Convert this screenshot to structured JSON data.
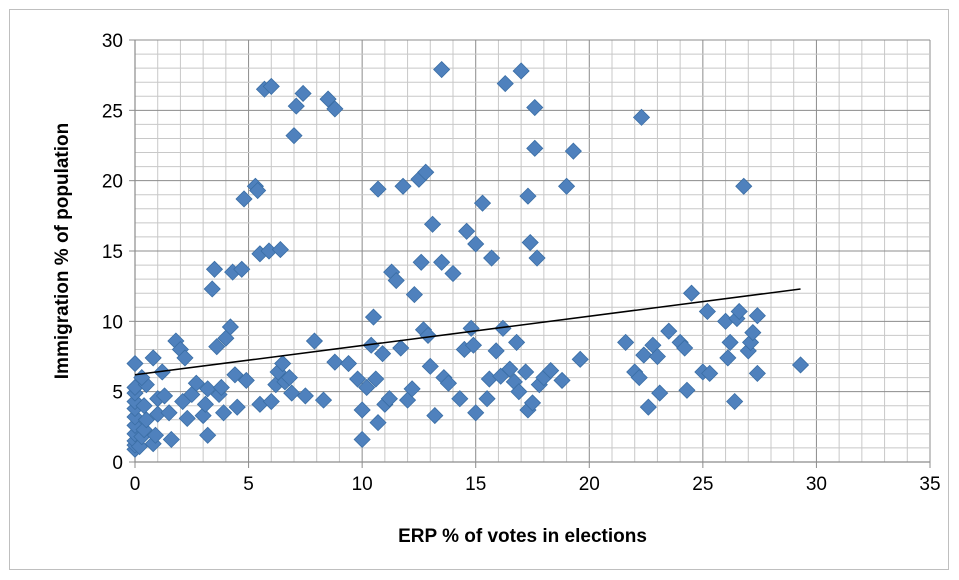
{
  "chart_data": {
    "type": "scatter",
    "xlabel": "ERP % of votes in elections",
    "ylabel": "Immigration % of population",
    "xlim": [
      0,
      35
    ],
    "ylim": [
      0,
      30
    ],
    "x_ticks": [
      "0",
      "5",
      "10",
      "15",
      "20",
      "25",
      "30",
      "35"
    ],
    "y_ticks": [
      "0",
      "5",
      "10",
      "15",
      "20",
      "25",
      "30"
    ],
    "grid": "major and minor",
    "legend": "none",
    "marker": "diamond",
    "marker_color": "#4f81bd",
    "trendline": {
      "type": "linear",
      "x_start": 0,
      "y_start": 6.2,
      "x_end": 29.3,
      "y_end": 12.3,
      "color": "#000000"
    },
    "series": [
      {
        "points": [
          [
            0,
            0.9
          ],
          [
            0,
            1.2
          ],
          [
            0,
            1.5
          ],
          [
            0,
            2.0
          ],
          [
            0,
            2.6
          ],
          [
            0,
            3.2
          ],
          [
            0,
            3.8
          ],
          [
            0,
            4.3
          ],
          [
            0,
            4.9
          ],
          [
            0,
            5.3
          ],
          [
            0,
            7.0
          ],
          [
            0.2,
            1.1
          ],
          [
            0.3,
            1.8
          ],
          [
            0.4,
            2.3
          ],
          [
            0.5,
            3.0
          ],
          [
            0.4,
            4.0
          ],
          [
            0.5,
            5.5
          ],
          [
            0.3,
            6.0
          ],
          [
            0.8,
            1.3
          ],
          [
            0.9,
            1.9
          ],
          [
            1.0,
            3.4
          ],
          [
            1.0,
            4.5
          ],
          [
            0.8,
            7.4
          ],
          [
            1.2,
            6.4
          ],
          [
            1.3,
            4.7
          ],
          [
            1.5,
            3.5
          ],
          [
            1.6,
            1.6
          ],
          [
            1.8,
            8.6
          ],
          [
            2.0,
            8.0
          ],
          [
            2.2,
            7.4
          ],
          [
            2.1,
            4.3
          ],
          [
            2.3,
            3.1
          ],
          [
            2.5,
            4.8
          ],
          [
            2.7,
            5.6
          ],
          [
            3.0,
            3.3
          ],
          [
            3.1,
            4.1
          ],
          [
            3.2,
            5.2
          ],
          [
            3.2,
            1.9
          ],
          [
            3.4,
            12.3
          ],
          [
            3.5,
            13.7
          ],
          [
            3.6,
            8.2
          ],
          [
            3.7,
            4.8
          ],
          [
            3.8,
            5.3
          ],
          [
            3.9,
            3.5
          ],
          [
            4.0,
            8.8
          ],
          [
            4.2,
            9.6
          ],
          [
            4.3,
            13.5
          ],
          [
            4.4,
            6.2
          ],
          [
            4.5,
            3.9
          ],
          [
            4.7,
            13.7
          ],
          [
            4.8,
            18.7
          ],
          [
            4.9,
            5.8
          ],
          [
            5.3,
            19.6
          ],
          [
            5.4,
            19.3
          ],
          [
            5.5,
            14.8
          ],
          [
            5.5,
            4.1
          ],
          [
            5.7,
            26.5
          ],
          [
            5.9,
            15.0
          ],
          [
            6.0,
            26.7
          ],
          [
            6.0,
            4.3
          ],
          [
            6.2,
            5.5
          ],
          [
            6.3,
            6.4
          ],
          [
            6.4,
            15.1
          ],
          [
            6.5,
            7.0
          ],
          [
            6.6,
            5.7
          ],
          [
            6.8,
            6.0
          ],
          [
            6.9,
            4.9
          ],
          [
            7.0,
            23.2
          ],
          [
            7.1,
            25.3
          ],
          [
            7.4,
            26.2
          ],
          [
            7.5,
            4.7
          ],
          [
            7.9,
            8.6
          ],
          [
            8.3,
            4.4
          ],
          [
            8.5,
            25.8
          ],
          [
            8.8,
            25.1
          ],
          [
            8.8,
            7.1
          ],
          [
            9.4,
            7.0
          ],
          [
            9.8,
            5.9
          ],
          [
            10.0,
            3.7
          ],
          [
            10.0,
            1.6
          ],
          [
            10.2,
            5.3
          ],
          [
            10.4,
            8.3
          ],
          [
            10.5,
            10.3
          ],
          [
            10.6,
            5.9
          ],
          [
            10.7,
            19.4
          ],
          [
            10.7,
            2.8
          ],
          [
            10.9,
            7.7
          ],
          [
            11.0,
            4.1
          ],
          [
            11.2,
            4.5
          ],
          [
            11.3,
            13.5
          ],
          [
            11.5,
            12.9
          ],
          [
            11.7,
            8.1
          ],
          [
            11.8,
            19.6
          ],
          [
            12.0,
            4.4
          ],
          [
            12.2,
            5.2
          ],
          [
            12.3,
            11.9
          ],
          [
            12.5,
            20.1
          ],
          [
            12.6,
            14.2
          ],
          [
            12.7,
            9.4
          ],
          [
            12.8,
            20.6
          ],
          [
            12.9,
            9.0
          ],
          [
            13.0,
            6.8
          ],
          [
            13.1,
            16.9
          ],
          [
            13.2,
            3.3
          ],
          [
            13.5,
            14.2
          ],
          [
            13.5,
            27.9
          ],
          [
            13.6,
            6.0
          ],
          [
            13.8,
            5.6
          ],
          [
            14.0,
            13.4
          ],
          [
            14.3,
            4.5
          ],
          [
            14.5,
            8.0
          ],
          [
            14.6,
            16.4
          ],
          [
            14.8,
            9.5
          ],
          [
            14.9,
            8.3
          ],
          [
            15.0,
            15.5
          ],
          [
            15.0,
            3.5
          ],
          [
            15.3,
            18.4
          ],
          [
            15.5,
            4.5
          ],
          [
            15.6,
            5.9
          ],
          [
            15.7,
            14.5
          ],
          [
            15.9,
            7.9
          ],
          [
            16.1,
            6.1
          ],
          [
            16.2,
            9.5
          ],
          [
            16.3,
            26.9
          ],
          [
            16.5,
            6.6
          ],
          [
            16.7,
            5.7
          ],
          [
            16.8,
            8.5
          ],
          [
            16.9,
            5.0
          ],
          [
            17.0,
            27.8
          ],
          [
            17.2,
            6.4
          ],
          [
            17.3,
            3.7
          ],
          [
            17.4,
            15.6
          ],
          [
            17.5,
            4.2
          ],
          [
            17.6,
            25.2
          ],
          [
            17.6,
            22.3
          ],
          [
            17.7,
            14.5
          ],
          [
            17.8,
            5.5
          ],
          [
            17.3,
            18.9
          ],
          [
            18.0,
            6.0
          ],
          [
            18.3,
            6.5
          ],
          [
            18.8,
            5.8
          ],
          [
            19.0,
            19.6
          ],
          [
            19.3,
            22.1
          ],
          [
            19.6,
            7.3
          ],
          [
            21.6,
            8.5
          ],
          [
            22.0,
            6.4
          ],
          [
            22.2,
            6.0
          ],
          [
            22.3,
            24.5
          ],
          [
            22.4,
            7.6
          ],
          [
            22.6,
            3.9
          ],
          [
            22.8,
            8.3
          ],
          [
            23.0,
            7.5
          ],
          [
            23.1,
            4.9
          ],
          [
            23.5,
            9.3
          ],
          [
            24.0,
            8.5
          ],
          [
            24.2,
            8.1
          ],
          [
            24.3,
            5.1
          ],
          [
            24.5,
            12.0
          ],
          [
            25.0,
            6.4
          ],
          [
            25.2,
            10.7
          ],
          [
            25.3,
            6.3
          ],
          [
            26.0,
            10.0
          ],
          [
            26.1,
            7.4
          ],
          [
            26.2,
            8.5
          ],
          [
            26.4,
            4.3
          ],
          [
            26.5,
            10.2
          ],
          [
            26.6,
            10.7
          ],
          [
            26.8,
            19.6
          ],
          [
            27.0,
            7.9
          ],
          [
            27.1,
            8.5
          ],
          [
            27.2,
            9.2
          ],
          [
            27.4,
            10.4
          ],
          [
            27.4,
            6.3
          ],
          [
            29.3,
            6.9
          ]
        ]
      }
    ]
  }
}
